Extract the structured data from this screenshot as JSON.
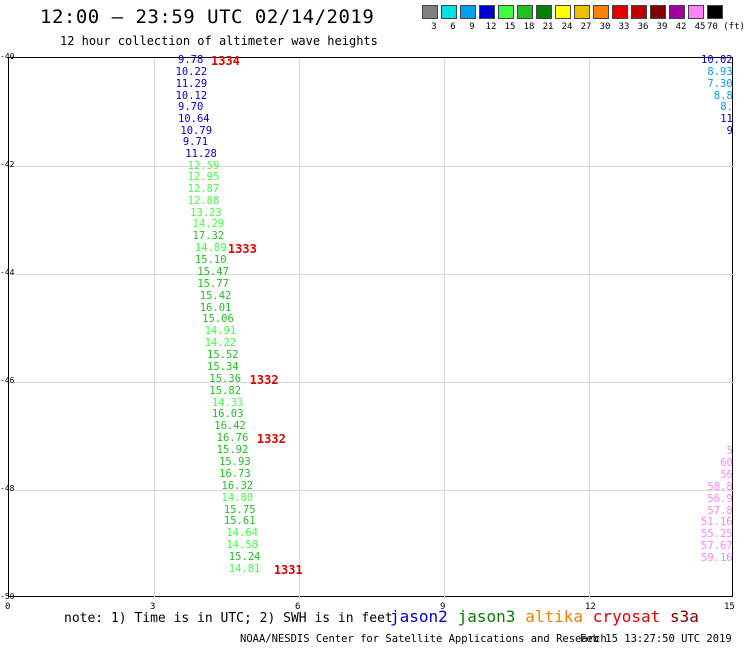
{
  "header": {
    "title": "12:00 – 23:59 UTC 02/14/2019",
    "subtitle": "12 hour collection of altimeter wave heights"
  },
  "colorbar": {
    "labels": [
      "3",
      "6",
      "9",
      "12",
      "15",
      "18",
      "21",
      "24",
      "27",
      "30",
      "33",
      "36",
      "39",
      "42",
      "45",
      "70 (ft)"
    ],
    "colors": [
      "#808080",
      "#00e0e0",
      "#00a0f0",
      "#0000d0",
      "#40ff40",
      "#20c020",
      "#008000",
      "#ffff00",
      "#f0c000",
      "#ff8000",
      "#e00000",
      "#c00000",
      "#800000",
      "#a000a0",
      "#ff80ff",
      "#000000"
    ]
  },
  "axes": {
    "y_ticks": [
      "-40",
      "-42",
      "-44",
      "-46",
      "-48",
      "-50"
    ],
    "x_ticks": [
      "0",
      "3",
      "6",
      "9",
      "12",
      "15"
    ]
  },
  "chart_data": {
    "type": "scatter",
    "xlim": [
      0,
      15
    ],
    "ylim": [
      -50,
      -40
    ],
    "tracks": [
      {
        "name": "main-track",
        "points": [
          {
            "lon": 3.6,
            "lat": -40.05,
            "v": "9.78",
            "c": "#0000d0"
          },
          {
            "lon": 3.55,
            "lat": -40.28,
            "v": "10.22",
            "c": "#0000d0"
          },
          {
            "lon": 3.55,
            "lat": -40.5,
            "v": "11.29",
            "c": "#0000d0"
          },
          {
            "lon": 3.55,
            "lat": -40.72,
            "v": "10.12",
            "c": "#0000d0"
          },
          {
            "lon": 3.6,
            "lat": -40.93,
            "v": "9.70",
            "c": "#0000d0"
          },
          {
            "lon": 3.6,
            "lat": -41.15,
            "v": "10.64",
            "c": "#0000d0"
          },
          {
            "lon": 3.65,
            "lat": -41.37,
            "v": "10.79",
            "c": "#0000d0"
          },
          {
            "lon": 3.7,
            "lat": -41.58,
            "v": "9.71",
            "c": "#0000d0"
          },
          {
            "lon": 3.75,
            "lat": -41.8,
            "v": "11.28",
            "c": "#0000d0"
          },
          {
            "lon": 3.8,
            "lat": -42.02,
            "v": "12.59",
            "c": "#40ff40"
          },
          {
            "lon": 3.8,
            "lat": -42.23,
            "v": "12.95",
            "c": "#40ff40"
          },
          {
            "lon": 3.8,
            "lat": -42.45,
            "v": "12.87",
            "c": "#40ff40"
          },
          {
            "lon": 3.8,
            "lat": -42.67,
            "v": "12.88",
            "c": "#40ff40"
          },
          {
            "lon": 3.85,
            "lat": -42.88,
            "v": "13.23",
            "c": "#40ff40"
          },
          {
            "lon": 3.9,
            "lat": -43.1,
            "v": "14.29",
            "c": "#40ff40"
          },
          {
            "lon": 3.9,
            "lat": -43.32,
            "v": "17.32",
            "c": "#20c020"
          },
          {
            "lon": 3.95,
            "lat": -43.54,
            "v": "14.89",
            "c": "#40ff40"
          },
          {
            "lon": 3.95,
            "lat": -43.76,
            "v": "15.10",
            "c": "#20c020"
          },
          {
            "lon": 4.0,
            "lat": -43.98,
            "v": "15.47",
            "c": "#20c020"
          },
          {
            "lon": 4.0,
            "lat": -44.2,
            "v": "15.77",
            "c": "#20c020"
          },
          {
            "lon": 4.05,
            "lat": -44.42,
            "v": "15.42",
            "c": "#20c020"
          },
          {
            "lon": 4.05,
            "lat": -44.64,
            "v": "16.01",
            "c": "#20c020"
          },
          {
            "lon": 4.1,
            "lat": -44.86,
            "v": "15.06",
            "c": "#20c020"
          },
          {
            "lon": 4.15,
            "lat": -45.08,
            "v": "14.91",
            "c": "#40ff40"
          },
          {
            "lon": 4.15,
            "lat": -45.3,
            "v": "14.22",
            "c": "#40ff40"
          },
          {
            "lon": 4.2,
            "lat": -45.52,
            "v": "15.52",
            "c": "#20c020"
          },
          {
            "lon": 4.2,
            "lat": -45.74,
            "v": "15.34",
            "c": "#20c020"
          },
          {
            "lon": 4.25,
            "lat": -45.96,
            "v": "15.36",
            "c": "#20c020"
          },
          {
            "lon": 4.25,
            "lat": -46.18,
            "v": "15.82",
            "c": "#20c020"
          },
          {
            "lon": 4.3,
            "lat": -46.4,
            "v": "14.33",
            "c": "#40ff40"
          },
          {
            "lon": 4.3,
            "lat": -46.62,
            "v": "16.03",
            "c": "#20c020"
          },
          {
            "lon": 4.35,
            "lat": -46.84,
            "v": "16.42",
            "c": "#20c020"
          },
          {
            "lon": 4.4,
            "lat": -47.06,
            "v": "16.76",
            "c": "#20c020"
          },
          {
            "lon": 4.4,
            "lat": -47.28,
            "v": "15.92",
            "c": "#20c020"
          },
          {
            "lon": 4.45,
            "lat": -47.5,
            "v": "15.93",
            "c": "#20c020"
          },
          {
            "lon": 4.45,
            "lat": -47.72,
            "v": "16.73",
            "c": "#20c020"
          },
          {
            "lon": 4.5,
            "lat": -47.94,
            "v": "16.32",
            "c": "#20c020"
          },
          {
            "lon": 4.5,
            "lat": -48.16,
            "v": "14.80",
            "c": "#40ff40"
          },
          {
            "lon": 4.55,
            "lat": -48.38,
            "v": "15.75",
            "c": "#20c020"
          },
          {
            "lon": 4.55,
            "lat": -48.6,
            "v": "15.61",
            "c": "#20c020"
          },
          {
            "lon": 4.6,
            "lat": -48.82,
            "v": "14.64",
            "c": "#40ff40"
          },
          {
            "lon": 4.6,
            "lat": -49.04,
            "v": "14.58",
            "c": "#40ff40"
          },
          {
            "lon": 4.65,
            "lat": -49.26,
            "v": "15.24",
            "c": "#20c020"
          },
          {
            "lon": 4.65,
            "lat": -49.48,
            "v": "14.81",
            "c": "#40ff40"
          }
        ]
      },
      {
        "name": "edge-track-top",
        "points": [
          {
            "lon": 14.6,
            "lat": -40.05,
            "v": "10.02",
            "c": "#0000d0"
          },
          {
            "lon": 14.75,
            "lat": -40.28,
            "v": "8.93",
            "c": "#00a0f0"
          },
          {
            "lon": 14.85,
            "lat": -40.5,
            "v": "7.30",
            "c": "#00a0f0"
          },
          {
            "lon": 14.9,
            "lat": -40.72,
            "v": "8.8",
            "c": "#00a0f0"
          },
          {
            "lon": 14.93,
            "lat": -40.93,
            "v": "8.",
            "c": "#00a0f0"
          },
          {
            "lon": 14.93,
            "lat": -41.15,
            "v": "11",
            "c": "#0000d0"
          },
          {
            "lon": 14.97,
            "lat": -41.37,
            "v": "9",
            "c": "#0000d0"
          }
        ]
      },
      {
        "name": "edge-track-bottom",
        "points": [
          {
            "lon": 14.97,
            "lat": -47.3,
            "v": "5",
            "c": "#ff80ff"
          },
          {
            "lon": 14.9,
            "lat": -47.52,
            "v": "60",
            "c": "#ff80ff"
          },
          {
            "lon": 14.85,
            "lat": -47.74,
            "v": "56",
            "c": "#ff80ff"
          },
          {
            "lon": 14.8,
            "lat": -47.96,
            "v": "58.8",
            "c": "#ff80ff"
          },
          {
            "lon": 14.75,
            "lat": -48.18,
            "v": "56.9",
            "c": "#ff80ff"
          },
          {
            "lon": 14.7,
            "lat": -48.4,
            "v": "57.8",
            "c": "#ff80ff"
          },
          {
            "lon": 14.65,
            "lat": -48.62,
            "v": "51.16",
            "c": "#ff80ff"
          },
          {
            "lon": 14.6,
            "lat": -48.84,
            "v": "55.25",
            "c": "#ff80ff"
          },
          {
            "lon": 14.55,
            "lat": -49.06,
            "v": "57.67",
            "c": "#ff80ff"
          },
          {
            "lon": 14.5,
            "lat": -49.28,
            "v": "59.16",
            "c": "#ff80ff"
          }
        ]
      }
    ],
    "pass_labels": [
      {
        "text": "1334",
        "lon": 4.2,
        "lat": -40.05
      },
      {
        "text": "1333",
        "lon": 4.55,
        "lat": -43.54
      },
      {
        "text": "1332",
        "lon": 5.0,
        "lat": -45.96
      },
      {
        "text": "1332",
        "lon": 5.15,
        "lat": -47.06
      },
      {
        "text": "1331",
        "lon": 5.5,
        "lat": -49.48
      }
    ]
  },
  "footer": {
    "note": "note: 1) Time is in UTC; 2) SWH is in feet",
    "legend": [
      {
        "text": "jason2",
        "color": "#0000d0"
      },
      {
        "text": "jason3",
        "color": "#008000"
      },
      {
        "text": "altika",
        "color": "#f08000"
      },
      {
        "text": "cryosat",
        "color": "#e00000"
      },
      {
        "text": "s3a",
        "color": "#800000"
      }
    ],
    "credit": "NOAA/NESDIS Center for Satellite Applications and Research",
    "timestamp": "Feb 15 13:27:50 UTC 2019"
  }
}
